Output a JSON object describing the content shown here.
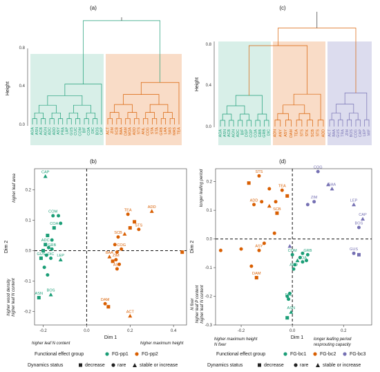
{
  "colors": {
    "green": "#1b9e77",
    "orange": "#d95f02",
    "purple": "#7570b3",
    "green_bg": "#d8efe8",
    "orange_bg": "#f9dcc7",
    "purple_bg": "#dcdcee",
    "trunk": "#333333"
  },
  "panels": {
    "a": {
      "label": "(a)",
      "ylabel": "Height",
      "yticks": [
        "0.0",
        "0.4",
        "0.8"
      ]
    },
    "c": {
      "label": "(c)",
      "ylabel": "Height",
      "yticks": [
        "0.0",
        "0.4",
        "0.8"
      ]
    },
    "b": {
      "label": "(b)",
      "xlabel": "Dim 1",
      "ylabel": "Dim 2",
      "xticks": [
        "-0.2",
        "0.0",
        "0.2",
        "0.4"
      ],
      "yticks": [
        "-0.2",
        "-0.1",
        "0.0",
        "0.1",
        "0.2"
      ],
      "notes": {
        "top_left": "higher leaf area",
        "bottom_left_1": "higher wood density",
        "bottom_left_2": "higher leaf N content",
        "x_left": "higher leaf N content",
        "x_right": "higher maximum height"
      }
    },
    "d": {
      "label": "(d)",
      "xlabel": "Dim 1",
      "ylabel": "Dim 2",
      "xticks": [
        "-0.2",
        "0.0",
        "0.2"
      ],
      "yticks": [
        "-0.3",
        "-0.2",
        "-0.1",
        "0.0",
        "0.1",
        "0.2"
      ],
      "notes": {
        "top_left": "longer leafing period",
        "bottom_left_1": "N fixer",
        "bottom_left_2": "higher leaf P content",
        "bottom_left_3": "higher leaf N content",
        "x_left_1": "higher maximum height",
        "x_left_2": "N fixer",
        "x_right_1": "longer leafing period",
        "x_right_2": "resprouting capacity"
      }
    }
  },
  "legend_left": {
    "fg_title": "Functional effect group",
    "groups": [
      "FG-pp1",
      "FG-pp2"
    ],
    "dyn_title": "Dynamics status",
    "statuses": [
      "decrease",
      "rare",
      "stable or increase"
    ]
  },
  "legend_right": {
    "fg_title": "Functional effect group",
    "groups": [
      "FG-bc1",
      "FG-bc2",
      "FG-bc3"
    ],
    "dyn_title": "Dynamics status",
    "statuses": [
      "decrease",
      "rare",
      "stable or increase"
    ]
  },
  "chart_data": [
    {
      "panel": "a",
      "type": "dendrogram",
      "ylabel": "Height",
      "ylim": [
        0,
        1.2
      ],
      "groups": [
        {
          "name": "FG-pp1",
          "leaves": [
            "AGA",
            "ASN",
            "ACB",
            "AGN",
            "ADC",
            "ADD",
            "ASY",
            "PRA",
            "LAP",
            "GUS",
            "CUC",
            "COM",
            "BIF",
            "COA",
            "DIC",
            "BOS",
            "CAP"
          ]
        },
        {
          "name": "FG-pp2",
          "leaves": [
            "ACT",
            "ZIM",
            "SCB",
            "BAA",
            "DAM",
            "MOA",
            "ADD",
            "STS",
            "ANL",
            "COG",
            "STA",
            "STA",
            "GRB",
            "LAA",
            "SAS",
            "MAS",
            "TEA"
          ]
        }
      ]
    },
    {
      "panel": "c",
      "type": "dendrogram",
      "ylabel": "Height",
      "ylim": [
        0,
        1.05
      ],
      "groups": [
        {
          "name": "FG-bc1",
          "leaves": [
            "AGA",
            "ASN",
            "ACB",
            "AGN",
            "ADC",
            "BIF",
            "DSP",
            "COP",
            "COA",
            "GBB",
            "GRB",
            "DIC"
          ]
        },
        {
          "name": "FG-bc2",
          "leaves": [
            "ADN",
            "ANY",
            "ASY",
            "DAM",
            "TEA",
            "STS",
            "STK",
            "SCB",
            "STS",
            "ADD"
          ]
        },
        {
          "name": "FG-bc3",
          "leaves": [
            "ACT",
            "BAA",
            "GUS",
            "TRA",
            "ZIM",
            "BOS",
            "COG",
            "CAP",
            "LEP",
            "MIF"
          ]
        }
      ]
    },
    {
      "panel": "b",
      "type": "scatter",
      "xlabel": "Dim 1",
      "ylabel": "Dim 2",
      "xlim": [
        -0.24,
        0.46
      ],
      "ylim": [
        -0.245,
        0.27
      ],
      "points": [
        {
          "x": -0.19,
          "y": 0.245,
          "g": 0,
          "s": 2,
          "label": "CAP"
        },
        {
          "x": -0.155,
          "y": 0.115,
          "g": 0,
          "s": 1,
          "label": "COM"
        },
        {
          "x": -0.13,
          "y": 0.115,
          "g": 0,
          "s": 1
        },
        {
          "x": -0.12,
          "y": 0.09,
          "g": 0,
          "s": 1
        },
        {
          "x": -0.15,
          "y": 0.075,
          "g": 0,
          "s": 0,
          "label": "COA"
        },
        {
          "x": -0.18,
          "y": 0.05,
          "g": 0,
          "s": 0
        },
        {
          "x": -0.16,
          "y": 0.035,
          "g": 0,
          "s": 1
        },
        {
          "x": -0.19,
          "y": 0.02,
          "g": 0,
          "s": 0,
          "label": "ADC"
        },
        {
          "x": -0.175,
          "y": 0.01,
          "g": 0,
          "s": 1
        },
        {
          "x": -0.16,
          "y": 0.005,
          "g": 0,
          "s": 1,
          "label": "GRB"
        },
        {
          "x": -0.2,
          "y": 0.0,
          "g": 0,
          "s": 0
        },
        {
          "x": -0.185,
          "y": -0.015,
          "g": 0,
          "s": 1
        },
        {
          "x": -0.21,
          "y": -0.025,
          "g": 0,
          "s": 0,
          "label": "GUS"
        },
        {
          "x": -0.165,
          "y": -0.025,
          "g": 0,
          "s": 1,
          "label": "DIC"
        },
        {
          "x": -0.12,
          "y": -0.03,
          "g": 0,
          "s": 2,
          "label": "LEP"
        },
        {
          "x": -0.195,
          "y": -0.055,
          "g": 0,
          "s": 1
        },
        {
          "x": -0.18,
          "y": -0.08,
          "g": 0,
          "s": 1
        },
        {
          "x": -0.165,
          "y": -0.145,
          "g": 0,
          "s": 2,
          "label": "BOS"
        },
        {
          "x": -0.22,
          "y": -0.155,
          "g": 0,
          "s": 0,
          "label": "ASN"
        },
        {
          "x": 0.3,
          "y": 0.13,
          "g": 1,
          "s": 2,
          "label": "ADD"
        },
        {
          "x": 0.19,
          "y": 0.12,
          "g": 1,
          "s": 1,
          "label": "TEA"
        },
        {
          "x": 0.22,
          "y": 0.095,
          "g": 1,
          "s": 0
        },
        {
          "x": 0.2,
          "y": 0.075,
          "g": 1,
          "s": 0
        },
        {
          "x": 0.24,
          "y": 0.07,
          "g": 1,
          "s": 1,
          "label": "STS"
        },
        {
          "x": 0.175,
          "y": 0.055,
          "g": 1,
          "s": 2
        },
        {
          "x": 0.145,
          "y": 0.045,
          "g": 1,
          "s": 1,
          "label": "SCB"
        },
        {
          "x": 0.13,
          "y": 0.02,
          "g": 1,
          "s": 1
        },
        {
          "x": 0.16,
          "y": 0.005,
          "g": 1,
          "s": 1,
          "label": "COG"
        },
        {
          "x": 0.14,
          "y": -0.005,
          "g": 1,
          "s": 1
        },
        {
          "x": 0.105,
          "y": -0.02,
          "g": 1,
          "s": 2,
          "label": "BAA"
        },
        {
          "x": 0.12,
          "y": -0.035,
          "g": 1,
          "s": 0
        },
        {
          "x": 0.135,
          "y": -0.03,
          "g": 1,
          "s": 1,
          "label": "ZIM"
        },
        {
          "x": 0.15,
          "y": -0.045,
          "g": 1,
          "s": 1
        },
        {
          "x": 0.14,
          "y": -0.06,
          "g": 1,
          "s": 1,
          "label": "ASY"
        },
        {
          "x": 0.44,
          "y": -0.005,
          "g": 1,
          "s": 0
        },
        {
          "x": 0.085,
          "y": -0.175,
          "g": 1,
          "s": 1,
          "label": "DAM"
        },
        {
          "x": 0.1,
          "y": -0.185,
          "g": 1,
          "s": 0
        },
        {
          "x": 0.2,
          "y": -0.215,
          "g": 1,
          "s": 2,
          "label": "ACT"
        }
      ]
    },
    {
      "panel": "d",
      "type": "scatter",
      "xlabel": "Dim 1",
      "ylabel": "Dim 2",
      "xlim": [
        -0.3,
        0.31
      ],
      "ylim": [
        -0.3,
        0.245
      ],
      "points": [
        {
          "x": -0.13,
          "y": 0.22,
          "g": 1,
          "s": 1,
          "label": "STS"
        },
        {
          "x": -0.17,
          "y": 0.195,
          "g": 1,
          "s": 0
        },
        {
          "x": -0.09,
          "y": 0.175,
          "g": 1,
          "s": 1
        },
        {
          "x": -0.04,
          "y": 0.17,
          "g": 1,
          "s": 1,
          "label": "TEA"
        },
        {
          "x": -0.02,
          "y": 0.15,
          "g": 1,
          "s": 0
        },
        {
          "x": -0.12,
          "y": 0.13,
          "g": 1,
          "s": 1
        },
        {
          "x": -0.065,
          "y": 0.13,
          "g": 1,
          "s": 1
        },
        {
          "x": -0.15,
          "y": 0.12,
          "g": 1,
          "s": 1,
          "label": "ADD"
        },
        {
          "x": -0.09,
          "y": 0.115,
          "g": 1,
          "s": 2
        },
        {
          "x": -0.06,
          "y": 0.09,
          "g": 1,
          "s": 0,
          "label": "SCB"
        },
        {
          "x": -0.07,
          "y": 0.02,
          "g": 1,
          "s": 1
        },
        {
          "x": -0.11,
          "y": -0.015,
          "g": 1,
          "s": 1
        },
        {
          "x": -0.2,
          "y": -0.035,
          "g": 1,
          "s": 1
        },
        {
          "x": -0.13,
          "y": -0.04,
          "g": 1,
          "s": 1,
          "label": "ASY"
        },
        {
          "x": -0.28,
          "y": -0.04,
          "g": 1,
          "s": 1
        },
        {
          "x": -0.16,
          "y": -0.095,
          "g": 1,
          "s": 1
        },
        {
          "x": -0.14,
          "y": -0.135,
          "g": 1,
          "s": 0,
          "label": "DAM"
        },
        {
          "x": 0.1,
          "y": 0.235,
          "g": 2,
          "s": 1,
          "label": "COG"
        },
        {
          "x": 0.14,
          "y": 0.19,
          "g": 2,
          "s": 2
        },
        {
          "x": 0.155,
          "y": 0.175,
          "g": 2,
          "s": 2,
          "label": "BAA"
        },
        {
          "x": 0.085,
          "y": 0.13,
          "g": 2,
          "s": 1,
          "label": "ZIM"
        },
        {
          "x": 0.06,
          "y": 0.12,
          "g": 2,
          "s": 1
        },
        {
          "x": 0.24,
          "y": 0.12,
          "g": 2,
          "s": 2,
          "label": "LEP"
        },
        {
          "x": 0.275,
          "y": 0.07,
          "g": 2,
          "s": 2,
          "label": "CAP"
        },
        {
          "x": 0.26,
          "y": 0.04,
          "g": 2,
          "s": 1,
          "label": "BOS"
        },
        {
          "x": 0.24,
          "y": -0.05,
          "g": 2,
          "s": 1,
          "label": "GUS"
        },
        {
          "x": 0.26,
          "y": -0.055,
          "g": 2,
          "s": 0
        },
        {
          "x": -0.01,
          "y": -0.025,
          "g": 2,
          "s": 2
        },
        {
          "x": 0.0,
          "y": -0.055,
          "g": 0,
          "s": 1,
          "label": "COM"
        },
        {
          "x": 0.04,
          "y": -0.05,
          "g": 0,
          "s": 1
        },
        {
          "x": 0.06,
          "y": -0.055,
          "g": 0,
          "s": 1,
          "label": "GRB"
        },
        {
          "x": 0.055,
          "y": -0.075,
          "g": 0,
          "s": 1
        },
        {
          "x": 0.04,
          "y": -0.08,
          "g": 0,
          "s": 1,
          "label": "COA"
        },
        {
          "x": 0.02,
          "y": -0.075,
          "g": 0,
          "s": 2
        },
        {
          "x": 0.03,
          "y": -0.065,
          "g": 0,
          "s": 1
        },
        {
          "x": 0.01,
          "y": -0.09,
          "g": 0,
          "s": 1
        },
        {
          "x": 0.005,
          "y": -0.105,
          "g": 0,
          "s": 1,
          "label": "ADD"
        },
        {
          "x": -0.01,
          "y": -0.19,
          "g": 0,
          "s": 1
        },
        {
          "x": -0.02,
          "y": -0.2,
          "g": 0,
          "s": 1
        },
        {
          "x": -0.015,
          "y": -0.21,
          "g": 0,
          "s": 1,
          "label": "DIC"
        },
        {
          "x": -0.005,
          "y": -0.255,
          "g": 0,
          "s": 2,
          "label": "ASN"
        },
        {
          "x": -0.02,
          "y": -0.275,
          "g": 0,
          "s": 0
        }
      ]
    }
  ]
}
